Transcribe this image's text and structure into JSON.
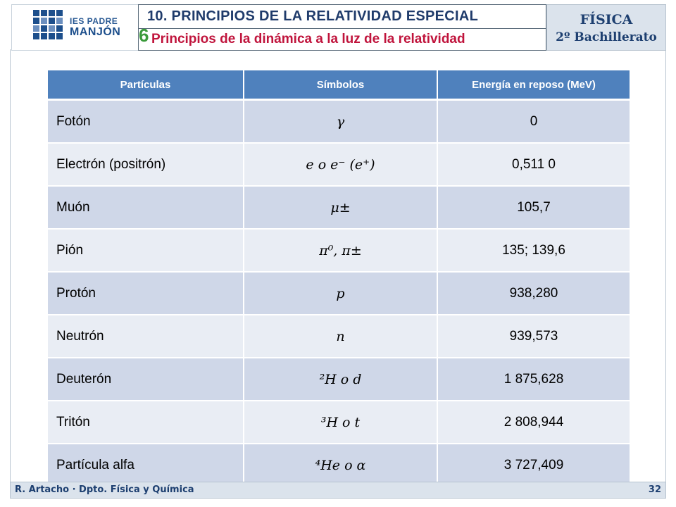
{
  "header": {
    "logo_line1": "IES PADRE",
    "logo_line2": "MANJÓN",
    "title": "10. PRINCIPIOS DE LA RELATIVIDAD ESPECIAL",
    "section_number": "6",
    "subtitle": "Principios de la dinámica a la luz de la relatividad",
    "subject_line1": "FÍSICA",
    "subject_line2": "2º Bachillerato"
  },
  "table": {
    "headers": [
      "Partículas",
      "Símbolos",
      "Energía en reposo (MeV)"
    ],
    "rows": [
      {
        "name": "Fotón",
        "symbol": "γ",
        "energy": "0"
      },
      {
        "name": "Electrón (positrón)",
        "symbol": "e o e⁻ (e⁺)",
        "energy": "0,511 0"
      },
      {
        "name": "Muón",
        "symbol": "μ±",
        "energy": "105,7"
      },
      {
        "name": "Pión",
        "symbol": "π⁰, π±",
        "energy": "135; 139,6"
      },
      {
        "name": "Protón",
        "symbol": "p",
        "energy": "938,280"
      },
      {
        "name": "Neutrón",
        "symbol": "n",
        "energy": "939,573"
      },
      {
        "name": "Deuterón",
        "symbol": "²H o d",
        "energy": "1 875,628"
      },
      {
        "name": "Tritón",
        "symbol": "³H o t",
        "energy": "2 808,944"
      },
      {
        "name": "Partícula alfa",
        "symbol": "⁴He o α",
        "energy": "3 727,409"
      }
    ]
  },
  "footer": {
    "author": "R. Artacho · Dpto. Física y Química",
    "page": "32"
  },
  "colors": {
    "header_row": "#4f81bd",
    "row_dark": "#cfd7e8",
    "row_light": "#e9edf4",
    "title_text": "#1f3b6b",
    "subtitle_text": "#c0143c",
    "section_number": "#3a9a3a"
  }
}
